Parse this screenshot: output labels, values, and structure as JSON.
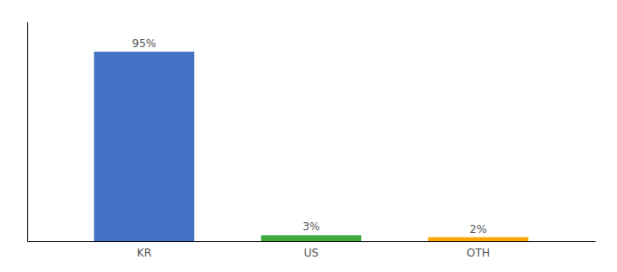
{
  "chart_data": {
    "type": "bar",
    "categories": [
      "KR",
      "US",
      "OTH"
    ],
    "values": [
      95,
      3,
      2
    ],
    "value_labels": [
      "95%",
      "3%",
      "2%"
    ],
    "colors": [
      "#4472C4",
      "#3DAA3D",
      "#FFA500"
    ],
    "ylim": [
      0,
      110
    ],
    "data_labels": true,
    "tick_labels": "x",
    "grid": false
  }
}
